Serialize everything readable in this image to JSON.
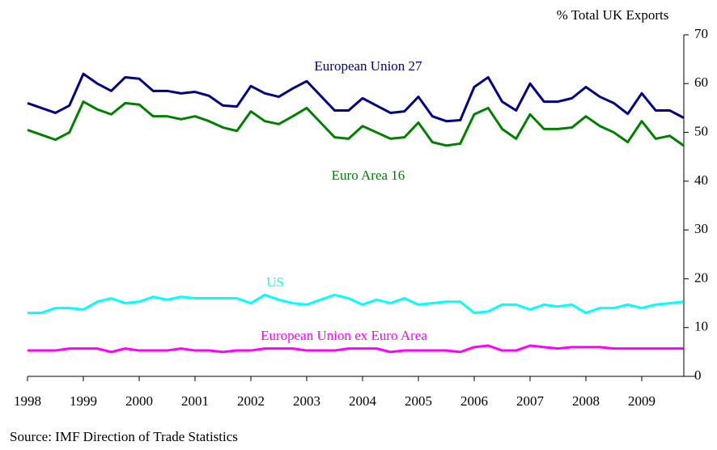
{
  "chart_data": {
    "type": "line",
    "y_axis_label": "% Total UK Exports",
    "source": "Source:  IMF Direction of Trade Statistics",
    "categories": [
      "1998",
      null,
      null,
      null,
      "1999",
      null,
      null,
      null,
      "2000",
      null,
      null,
      null,
      "2001",
      null,
      null,
      null,
      "2002",
      null,
      null,
      null,
      "2003",
      null,
      null,
      null,
      "2004",
      null,
      null,
      null,
      "2005",
      null,
      null,
      null,
      "2006",
      null,
      null,
      null,
      "2007",
      null,
      null,
      null,
      "2008",
      null,
      null,
      null,
      "2009",
      null,
      null,
      null
    ],
    "ylim": [
      0,
      70
    ],
    "yticks": [
      0,
      10,
      20,
      30,
      40,
      50,
      60,
      70
    ],
    "series": [
      {
        "name": "European Union 27",
        "color": "#000080",
        "values": [
          56,
          55,
          54,
          55.5,
          62,
          60,
          58.5,
          61.3,
          61,
          58.5,
          58.5,
          58,
          58.3,
          57.5,
          55.5,
          55.3,
          59.5,
          58,
          57.3,
          59,
          60.5,
          57.5,
          54.5,
          54.5,
          57,
          55.5,
          54,
          54.3,
          57.3,
          53.3,
          52.3,
          52.5,
          59.3,
          61.3,
          56.3,
          54.5,
          60,
          56.3,
          56.3,
          57,
          59.3,
          57.3,
          56,
          53.8,
          58,
          54.5,
          54.5,
          53
        ]
      },
      {
        "name": "Euro Area 16",
        "color": "#008000",
        "values": [
          50.5,
          49.5,
          48.5,
          50,
          56.3,
          54.7,
          53.7,
          56,
          55.7,
          53.3,
          53.3,
          52.7,
          53.3,
          52.3,
          51,
          50.3,
          54.3,
          52.3,
          51.7,
          53.3,
          55,
          52,
          49,
          48.7,
          51.3,
          50,
          48.7,
          49,
          52,
          48,
          47.3,
          47.7,
          53.7,
          55,
          50.7,
          48.7,
          53.7,
          50.7,
          50.7,
          51,
          53.3,
          51.3,
          50,
          48,
          52.3,
          48.7,
          49.3,
          47.3
        ]
      },
      {
        "name": "US",
        "color": "#00ffff",
        "values": [
          13,
          13,
          14,
          14,
          13.7,
          15.3,
          16,
          15,
          15.3,
          16.3,
          15.7,
          16.3,
          16,
          16,
          16,
          16,
          15,
          16.7,
          15.7,
          15,
          14.7,
          15.7,
          16.7,
          16,
          14.7,
          15.7,
          15,
          16,
          14.7,
          15,
          15.3,
          15.3,
          13,
          13.3,
          14.7,
          14.7,
          13.7,
          14.7,
          14.3,
          14.7,
          13,
          14,
          14,
          14.7,
          14,
          14.7,
          15,
          15.3
        ]
      },
      {
        "name": "European Union ex Euro Area",
        "color": "#ff00ff",
        "values": [
          5.3,
          5.3,
          5.3,
          5.7,
          5.7,
          5.7,
          5,
          5.7,
          5.3,
          5.3,
          5.3,
          5.7,
          5.3,
          5.3,
          5,
          5.3,
          5.3,
          5.7,
          5.7,
          5.7,
          5.3,
          5.3,
          5.3,
          5.7,
          5.7,
          5.7,
          5,
          5.3,
          5.3,
          5.3,
          5.3,
          5,
          6,
          6.3,
          5.3,
          5.3,
          6.3,
          6,
          5.7,
          6,
          6,
          6,
          5.7,
          5.7,
          5.7,
          5.7,
          5.7,
          5.7
        ]
      }
    ]
  }
}
